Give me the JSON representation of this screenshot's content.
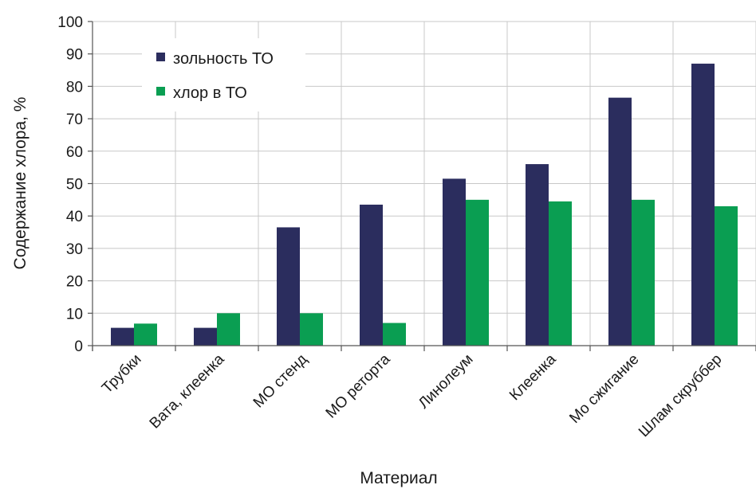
{
  "chart_data": {
    "type": "bar",
    "title": "",
    "xlabel": "Материал",
    "ylabel": "Содержание хлора, %",
    "ylim": [
      0,
      100
    ],
    "yticks": [
      0,
      10,
      20,
      30,
      40,
      50,
      60,
      70,
      80,
      90,
      100
    ],
    "grid": true,
    "legend_position": "top-left",
    "categories": [
      "Трубки",
      "Вата, клеенка",
      "МО стенд",
      "МО реторта",
      "Линолеум",
      "Клеенка",
      "Мо сжигание",
      "Шлам скруббер"
    ],
    "series": [
      {
        "name": "зольность ТО",
        "color": "#2b2d5e",
        "values": [
          5.5,
          5.5,
          36.5,
          43.5,
          51.5,
          56,
          76.5,
          87
        ]
      },
      {
        "name": "хлор в ТО",
        "color": "#0a9e52",
        "values": [
          6.8,
          10,
          10,
          7,
          45,
          44.5,
          45,
          43
        ]
      }
    ]
  }
}
